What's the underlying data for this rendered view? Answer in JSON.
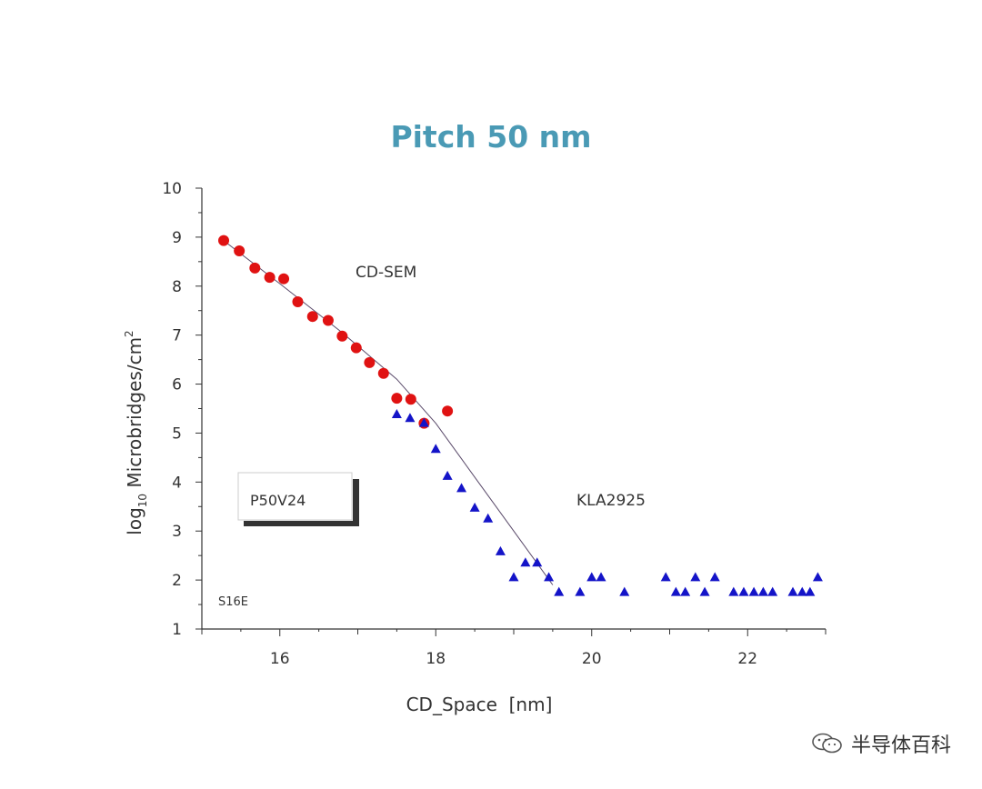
{
  "colors": {
    "title": "#4a9ab5",
    "cdsem": "#e01212",
    "kla": "#1414c8",
    "fit": "#5a4a6a",
    "axis": "#333333",
    "box_shadow": "#333333",
    "box_border": "#cccccc"
  },
  "annotations": {
    "cdsem_label": "CD-SEM",
    "kla_label": "KLA2925",
    "sample_label": "P50V24",
    "corner_label": "S16E"
  },
  "watermark": {
    "text": "半导体百科",
    "icon": "wechat-icon"
  },
  "chart_data": {
    "type": "scatter",
    "title": "Pitch 50 nm",
    "xlabel": "CD_Space  [nm]",
    "ylabel_prefix": "log",
    "ylabel_sub": "10",
    "ylabel_main": " Microbridges/cm",
    "ylabel_sup": "2",
    "xlim": [
      15.0,
      23.0
    ],
    "ylim": [
      1,
      10
    ],
    "xticks": [
      16,
      18,
      20,
      22
    ],
    "yticks": [
      1,
      2,
      3,
      4,
      5,
      6,
      7,
      8,
      9,
      10
    ],
    "grid": false,
    "series": [
      {
        "name": "CD-SEM",
        "marker": "circle",
        "x": [
          15.28,
          15.48,
          15.68,
          15.87,
          16.05,
          16.23,
          16.42,
          16.62,
          16.8,
          16.98,
          17.15,
          17.33,
          17.5,
          17.68,
          17.85,
          18.15
        ],
        "y": [
          8.93,
          8.72,
          8.37,
          8.18,
          8.15,
          7.68,
          7.38,
          7.3,
          6.98,
          6.74,
          6.44,
          6.22,
          5.71,
          5.69,
          5.2,
          5.45
        ]
      },
      {
        "name": "KLA2925",
        "marker": "triangle",
        "x": [
          17.5,
          17.67,
          17.85,
          18.0,
          18.15,
          18.33,
          18.5,
          18.67,
          18.83,
          19.0,
          19.15,
          19.3,
          19.45,
          19.58,
          19.85,
          20.0,
          20.12,
          20.42,
          20.95,
          21.08,
          21.2,
          21.33,
          21.45,
          21.58,
          21.82,
          21.95,
          22.08,
          22.2,
          22.32,
          22.58,
          22.7,
          22.8,
          22.9
        ],
        "y": [
          5.38,
          5.3,
          5.2,
          4.67,
          4.12,
          3.87,
          3.47,
          3.25,
          2.58,
          2.05,
          2.35,
          2.35,
          2.05,
          1.75,
          1.75,
          2.05,
          2.05,
          1.75,
          2.05,
          1.75,
          1.75,
          2.05,
          1.75,
          2.05,
          1.75,
          1.75,
          1.75,
          1.75,
          1.75,
          1.75,
          1.75,
          1.75,
          2.05
        ]
      }
    ],
    "fit_line": {
      "x": [
        15.28,
        16.0,
        16.8,
        17.5,
        18.0,
        18.5,
        19.0,
        19.5
      ],
      "y": [
        8.93,
        8.05,
        7.05,
        6.1,
        5.2,
        4.1,
        3.0,
        1.9
      ]
    }
  }
}
